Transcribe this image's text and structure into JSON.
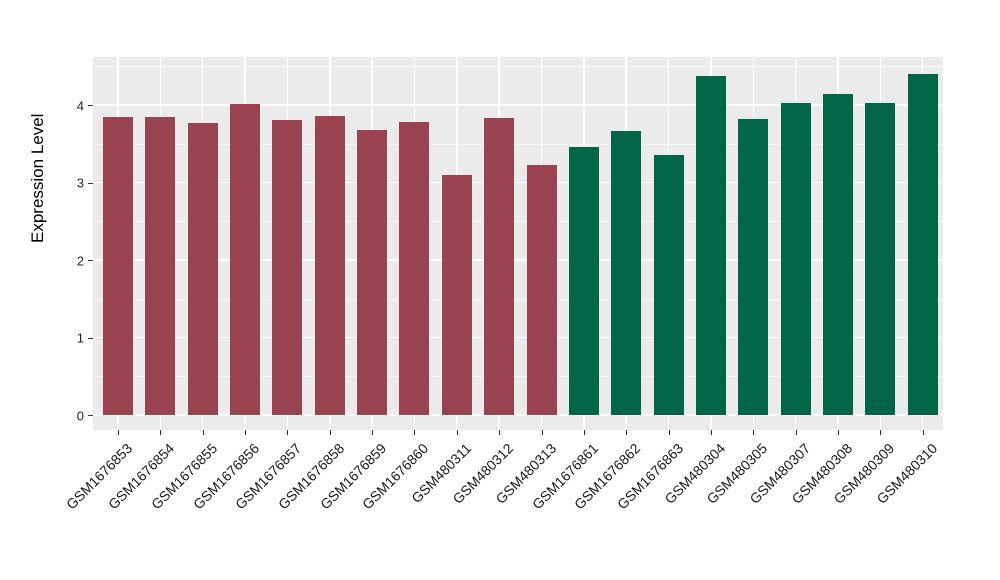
{
  "chart_data": {
    "type": "bar",
    "title": "",
    "xlabel": "",
    "ylabel": "Expression Level",
    "categories": [
      "GSM1676853",
      "GSM1676854",
      "GSM1676855",
      "GSM1676856",
      "GSM1676857",
      "GSM1676858",
      "GSM1676859",
      "GSM1676860",
      "GSM480311",
      "GSM480312",
      "GSM480313",
      "GSM1676861",
      "GSM1676862",
      "GSM1676863",
      "GSM480304",
      "GSM480305",
      "GSM480307",
      "GSM480308",
      "GSM480309",
      "GSM480310"
    ],
    "values": [
      3.84,
      3.84,
      3.77,
      4.01,
      3.81,
      3.86,
      3.68,
      3.78,
      3.1,
      3.83,
      3.23,
      3.46,
      3.66,
      3.35,
      4.38,
      3.82,
      4.03,
      4.14,
      4.03,
      4.4
    ],
    "group_index": [
      0,
      0,
      0,
      0,
      0,
      0,
      0,
      0,
      0,
      0,
      0,
      1,
      1,
      1,
      1,
      1,
      1,
      1,
      1,
      1
    ],
    "group_colors": [
      "#9A4350",
      "#016648"
    ],
    "yticks": [
      "0",
      "1",
      "2",
      "3",
      "4"
    ],
    "ylim": [
      -0.2,
      4.62
    ],
    "x_tick_rotation": 45,
    "legend": "none",
    "grid": {
      "panel_background": "#EBEBEB",
      "major_color": "#FFFFFF",
      "minor_color": "#FFFFFF",
      "grid_on": true
    }
  }
}
